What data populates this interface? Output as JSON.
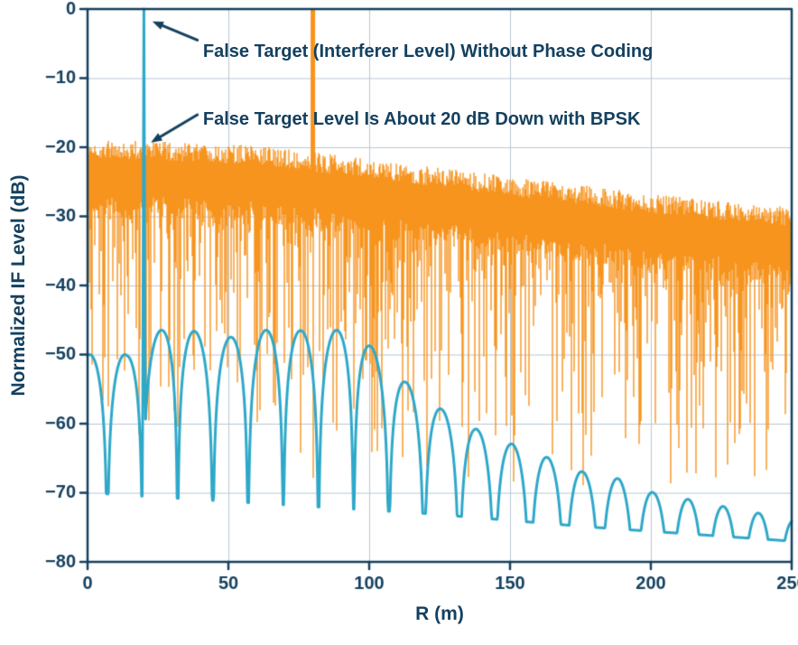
{
  "chart_data": {
    "type": "line",
    "title": "",
    "xlabel": "R (m)",
    "ylabel": "Normalized IF Level (dB)",
    "xlim": [
      0,
      250
    ],
    "ylim": [
      -80,
      0
    ],
    "xticks": {
      "values": [
        0,
        50,
        100,
        150,
        200,
        250
      ],
      "labels": [
        "0",
        "50",
        "100",
        "150",
        "200",
        "250"
      ]
    },
    "yticks": {
      "values": [
        0,
        -10,
        -20,
        -30,
        -40,
        -50,
        -60,
        -70,
        -80
      ],
      "labels": [
        "0",
        "−10",
        "−20",
        "−30",
        "−40",
        "−50",
        "−60",
        "−70",
        "−80"
      ]
    },
    "grid": true,
    "legend": "none",
    "colors": {
      "axis": "#14405f",
      "grid": "#b9c8d4",
      "bpsk_trace": "#2ea8c9",
      "interferer_trace": "#f7941e",
      "annotation": "#14405f",
      "background": "#ffffff"
    },
    "noise_seed": 12,
    "series": [
      {
        "name": "interferer-noise-floor",
        "label": "Interferer plus noise floor with false-target spike at 80 m reaching 0 dB",
        "color_key": "interferer_trace",
        "model": "noise_band",
        "top_envelope_db": [
          [
            0,
            -21.5
          ],
          [
            60,
            -22.5
          ],
          [
            100,
            -24.5
          ],
          [
            150,
            -27
          ],
          [
            200,
            -29.5
          ],
          [
            250,
            -31.5
          ]
        ],
        "base_depth_db": 8,
        "random_depth_db": 34,
        "deep_spike_prob": 0.02,
        "deep_spike_extra_db": 25,
        "floor_db": -69,
        "spike": {
          "x": 80,
          "peak_db": 0
        }
      },
      {
        "name": "bpsk-coded-response",
        "label": "Range sidelobe response with BPSK phase coding; false target spike at 20 m",
        "color_key": "bpsk_trace",
        "model": "sidelobes",
        "null_start_m": 7,
        "null_period_m": 12.5,
        "peak_envelope_db": [
          [
            0,
            -50
          ],
          [
            14,
            -50
          ],
          [
            31,
            -45
          ],
          [
            44,
            -48
          ],
          [
            57,
            -47
          ],
          [
            69,
            -46
          ],
          [
            82,
            -47
          ],
          [
            94,
            -46
          ],
          [
            101,
            -49
          ],
          [
            113,
            -54
          ],
          [
            126,
            -58
          ],
          [
            139,
            -61
          ],
          [
            151,
            -63
          ],
          [
            164,
            -65
          ],
          [
            176,
            -67
          ],
          [
            189,
            -68
          ],
          [
            201,
            -70
          ],
          [
            214,
            -71
          ],
          [
            226,
            -72
          ],
          [
            239,
            -73
          ],
          [
            250,
            -74
          ]
        ],
        "valley_envelope_db": [
          [
            0,
            -70
          ],
          [
            60,
            -71.5
          ],
          [
            120,
            -73
          ],
          [
            180,
            -75
          ],
          [
            250,
            -77
          ]
        ],
        "spike": {
          "x": 20,
          "peak_db": 0,
          "half_width_m": 0.5
        }
      }
    ],
    "annotations": [
      {
        "text": "False Target (Interferer Level) Without Phase Coding",
        "text_at": [
          41,
          -6.2
        ],
        "arrow_from": [
          39,
          -4.5
        ],
        "arrow_to": [
          23,
          -1.8
        ]
      },
      {
        "text": "False Target Level Is About 20 dB Down with BPSK",
        "text_at": [
          41,
          -16
        ],
        "arrow_from": [
          39,
          -15.3
        ],
        "arrow_to": [
          22.5,
          -19.3
        ]
      }
    ]
  }
}
